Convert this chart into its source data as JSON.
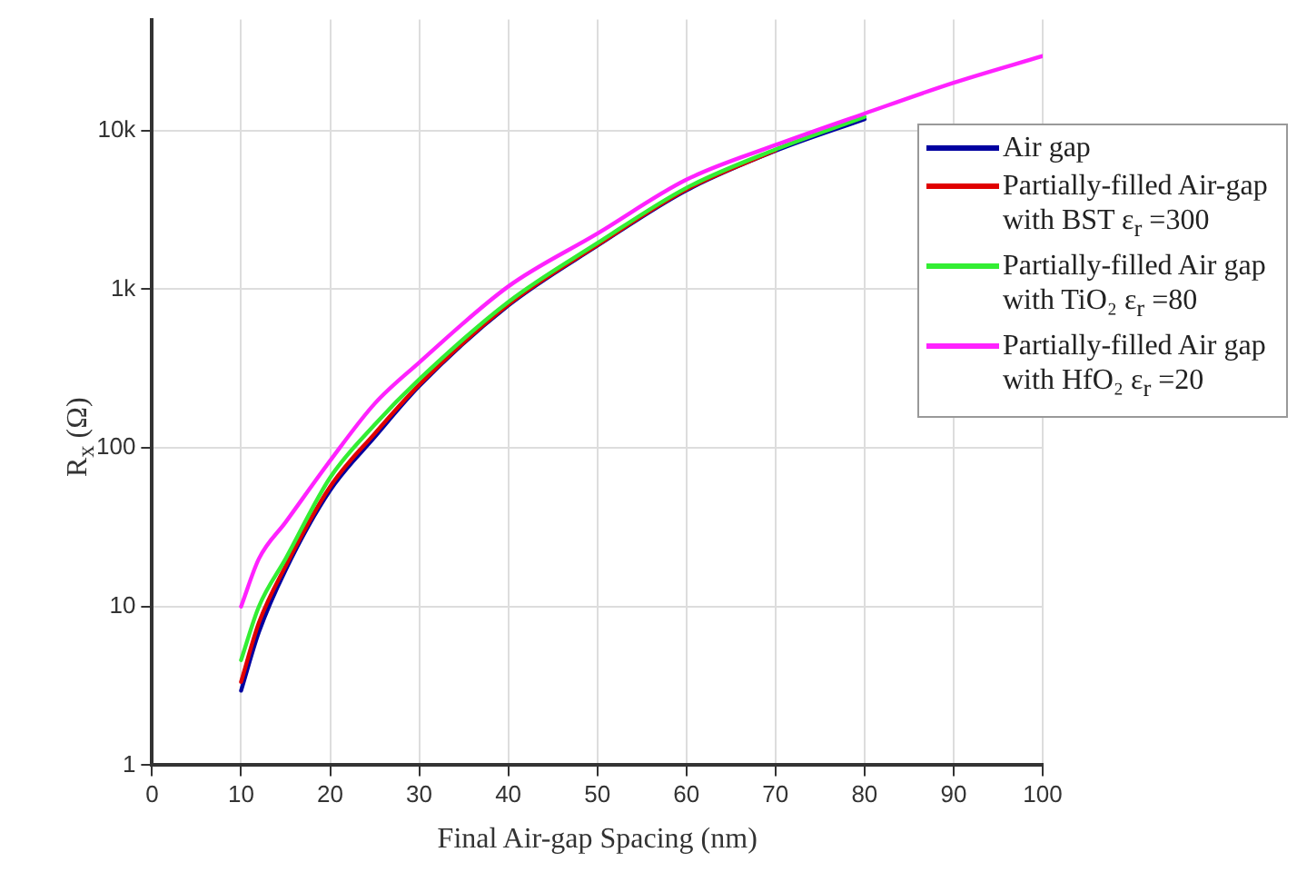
{
  "chart_data": {
    "type": "line",
    "xlabel": "Final Air-gap Spacing (nm)",
    "ylabel": "R$_{x}$ (Ω)",
    "x": [
      10,
      12,
      15,
      20,
      25,
      30,
      40,
      50,
      60,
      70,
      80,
      90,
      100
    ],
    "series": [
      {
        "name": "Air gap",
        "color": "#0000a0",
        "values": [
          2.95,
          6.9,
          17,
          54,
          117,
          245,
          790,
          1880,
          4200,
          7450,
          11800,
          null,
          null
        ]
      },
      {
        "name": "Partially-filled Air-gap with BST ε$_{r}$ =300",
        "color": "#e00000",
        "values": [
          3.35,
          7.9,
          18,
          57,
          123,
          250,
          800,
          1900,
          4250,
          7500,
          null,
          null,
          null
        ]
      },
      {
        "name": "Partially-filled Air gap with TiO₂ ε$_{r}$ =80",
        "color": "#33ee33",
        "values": [
          4.6,
          10,
          20,
          65,
          140,
          270,
          830,
          1950,
          4350,
          7600,
          12200,
          null,
          null
        ]
      },
      {
        "name": "Partially-filled Air gap with HfO₂ ε$_{r}$ =20",
        "color": "#ff22ff",
        "values": [
          10,
          20,
          34,
          83,
          190,
          345,
          1040,
          2240,
          4900,
          8100,
          12800,
          20000,
          29500
        ]
      }
    ],
    "xlim": [
      0,
      100
    ],
    "xticks": [
      0,
      10,
      20,
      30,
      40,
      50,
      60,
      70,
      80,
      90,
      100
    ],
    "ylim": [
      1,
      50000
    ],
    "yticks": [
      1,
      10,
      100,
      {
        "value": 1000,
        "label": "1k"
      },
      {
        "value": 10000,
        "label": "10k"
      }
    ],
    "log": "y",
    "grid": true,
    "legend": "right",
    "line_style": "solid",
    "marker": "none"
  }
}
